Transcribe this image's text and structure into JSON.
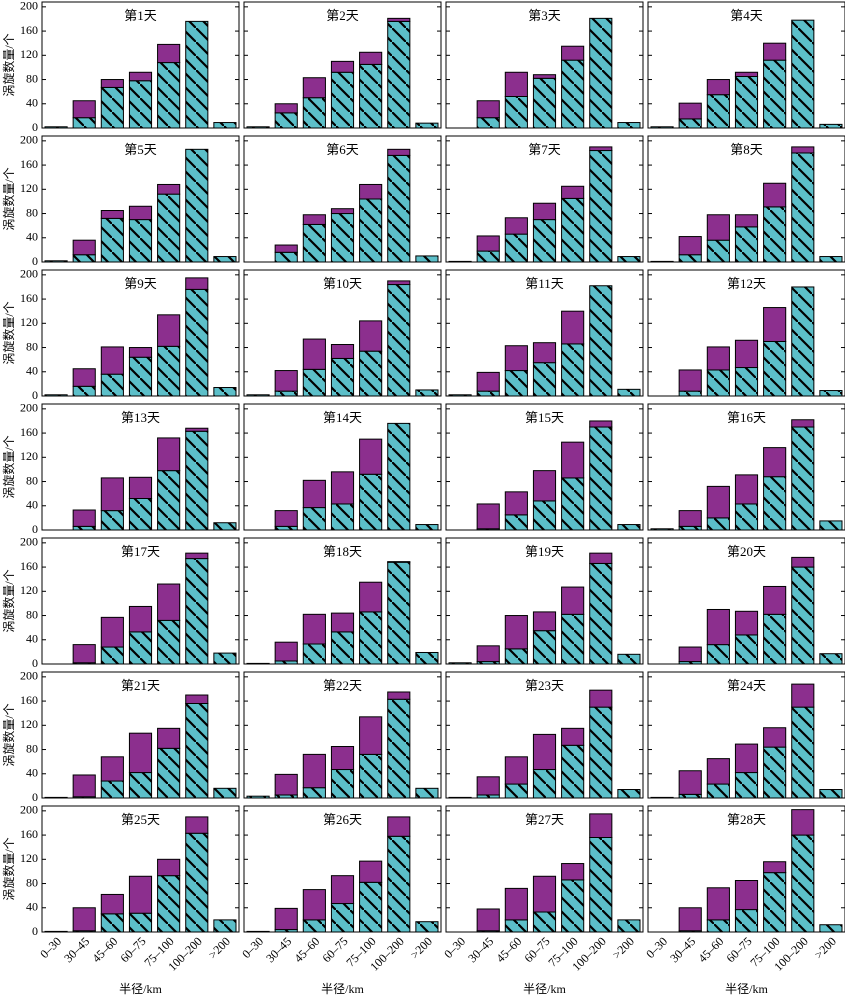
{
  "chart_data": [
    {
      "type": "bar",
      "stacked": true,
      "title": "第1天",
      "ylabel": "涡旋数量/个",
      "ylim": [
        0,
        208
      ],
      "yticks": [
        0,
        40,
        80,
        120,
        160,
        200
      ],
      "series": [
        {
          "color": "#5cbfc9",
          "hatch": true,
          "values": [
            2,
            17,
            67,
            78,
            108,
            176,
            9
          ]
        },
        {
          "color": "#8c2f8e",
          "values": [
            0,
            28,
            13,
            14,
            30,
            0,
            0
          ]
        }
      ]
    },
    {
      "type": "bar",
      "stacked": true,
      "title": "第2天",
      "ylim": [
        0,
        208
      ],
      "yticks": [
        0,
        40,
        80,
        120,
        160,
        200
      ],
      "series": [
        {
          "color": "#5cbfc9",
          "hatch": true,
          "values": [
            2,
            25,
            50,
            92,
            105,
            176,
            8
          ]
        },
        {
          "color": "#8c2f8e",
          "values": [
            0,
            15,
            33,
            18,
            20,
            5,
            0
          ]
        }
      ]
    },
    {
      "type": "bar",
      "stacked": true,
      "title": "第3天",
      "ylim": [
        0,
        208
      ],
      "yticks": [
        0,
        40,
        80,
        120,
        160,
        200
      ],
      "series": [
        {
          "color": "#5cbfc9",
          "hatch": true,
          "values": [
            0,
            17,
            52,
            82,
            112,
            181,
            9
          ]
        },
        {
          "color": "#8c2f8e",
          "values": [
            0,
            28,
            40,
            6,
            23,
            0,
            0
          ]
        }
      ]
    },
    {
      "type": "bar",
      "stacked": true,
      "title": "第4天",
      "ylim": [
        0,
        208
      ],
      "yticks": [
        0,
        40,
        80,
        120,
        160,
        200
      ],
      "series": [
        {
          "color": "#5cbfc9",
          "hatch": true,
          "values": [
            2,
            15,
            55,
            85,
            112,
            178,
            6
          ]
        },
        {
          "color": "#8c2f8e",
          "values": [
            0,
            26,
            25,
            7,
            28,
            0,
            0
          ]
        }
      ]
    },
    {
      "type": "bar",
      "stacked": true,
      "title": "第5天",
      "ylabel": "涡旋数量/个",
      "ylim": [
        0,
        208
      ],
      "yticks": [
        0,
        40,
        80,
        120,
        160,
        200
      ],
      "series": [
        {
          "color": "#5cbfc9",
          "hatch": true,
          "values": [
            2,
            12,
            72,
            70,
            112,
            186,
            9
          ]
        },
        {
          "color": "#8c2f8e",
          "values": [
            0,
            24,
            13,
            22,
            16,
            0,
            0
          ]
        }
      ]
    },
    {
      "type": "bar",
      "stacked": true,
      "title": "第6天",
      "ylim": [
        0,
        208
      ],
      "yticks": [
        0,
        40,
        80,
        120,
        160,
        200
      ],
      "series": [
        {
          "color": "#5cbfc9",
          "hatch": true,
          "values": [
            0,
            16,
            62,
            80,
            104,
            176,
            10
          ]
        },
        {
          "color": "#8c2f8e",
          "values": [
            0,
            12,
            16,
            8,
            24,
            10,
            0
          ]
        }
      ]
    },
    {
      "type": "bar",
      "stacked": true,
      "title": "第7天",
      "ylim": [
        0,
        208
      ],
      "yticks": [
        0,
        40,
        80,
        120,
        160,
        200
      ],
      "series": [
        {
          "color": "#5cbfc9",
          "hatch": true,
          "values": [
            1,
            18,
            46,
            70,
            105,
            184,
            9
          ]
        },
        {
          "color": "#8c2f8e",
          "values": [
            0,
            25,
            27,
            27,
            20,
            6,
            0
          ]
        }
      ]
    },
    {
      "type": "bar",
      "stacked": true,
      "title": "第8天",
      "ylim": [
        0,
        208
      ],
      "yticks": [
        0,
        40,
        80,
        120,
        160,
        200
      ],
      "series": [
        {
          "color": "#5cbfc9",
          "hatch": true,
          "values": [
            1,
            12,
            36,
            58,
            91,
            180,
            9
          ]
        },
        {
          "color": "#8c2f8e",
          "values": [
            0,
            30,
            42,
            20,
            39,
            10,
            0
          ]
        }
      ]
    },
    {
      "type": "bar",
      "stacked": true,
      "title": "第9天",
      "ylabel": "涡旋数量/个",
      "ylim": [
        0,
        208
      ],
      "yticks": [
        0,
        40,
        80,
        120,
        160,
        200
      ],
      "series": [
        {
          "color": "#5cbfc9",
          "hatch": true,
          "values": [
            2,
            16,
            36,
            64,
            82,
            176,
            14
          ]
        },
        {
          "color": "#8c2f8e",
          "values": [
            0,
            29,
            45,
            16,
            52,
            19,
            0
          ]
        }
      ]
    },
    {
      "type": "bar",
      "stacked": true,
      "title": "第10天",
      "ylim": [
        0,
        208
      ],
      "yticks": [
        0,
        40,
        80,
        120,
        160,
        200
      ],
      "series": [
        {
          "color": "#5cbfc9",
          "hatch": true,
          "values": [
            2,
            8,
            44,
            62,
            74,
            184,
            10
          ]
        },
        {
          "color": "#8c2f8e",
          "values": [
            0,
            34,
            50,
            23,
            50,
            6,
            0
          ]
        }
      ]
    },
    {
      "type": "bar",
      "stacked": true,
      "title": "第11天",
      "ylim": [
        0,
        208
      ],
      "yticks": [
        0,
        40,
        80,
        120,
        160,
        200
      ],
      "series": [
        {
          "color": "#5cbfc9",
          "hatch": true,
          "values": [
            2,
            8,
            42,
            55,
            86,
            182,
            11
          ]
        },
        {
          "color": "#8c2f8e",
          "values": [
            0,
            31,
            41,
            33,
            54,
            0,
            0
          ]
        }
      ]
    },
    {
      "type": "bar",
      "stacked": true,
      "title": "第12天",
      "ylim": [
        0,
        208
      ],
      "yticks": [
        0,
        40,
        80,
        120,
        160,
        200
      ],
      "series": [
        {
          "color": "#5cbfc9",
          "hatch": true,
          "values": [
            0,
            8,
            43,
            47,
            90,
            180,
            9
          ]
        },
        {
          "color": "#8c2f8e",
          "values": [
            0,
            35,
            38,
            45,
            56,
            0,
            0
          ]
        }
      ]
    },
    {
      "type": "bar",
      "stacked": true,
      "title": "第13天",
      "ylabel": "涡旋数量/个",
      "ylim": [
        0,
        208
      ],
      "yticks": [
        0,
        40,
        80,
        120,
        160,
        200
      ],
      "series": [
        {
          "color": "#5cbfc9",
          "hatch": true,
          "values": [
            0,
            6,
            32,
            52,
            98,
            163,
            12
          ]
        },
        {
          "color": "#8c2f8e",
          "values": [
            0,
            27,
            54,
            35,
            54,
            5,
            0
          ]
        }
      ]
    },
    {
      "type": "bar",
      "stacked": true,
      "title": "第14天",
      "ylim": [
        0,
        208
      ],
      "yticks": [
        0,
        40,
        80,
        120,
        160,
        200
      ],
      "series": [
        {
          "color": "#5cbfc9",
          "hatch": true,
          "values": [
            0,
            6,
            37,
            43,
            92,
            176,
            9
          ]
        },
        {
          "color": "#8c2f8e",
          "values": [
            0,
            26,
            45,
            53,
            58,
            0,
            0
          ]
        }
      ]
    },
    {
      "type": "bar",
      "stacked": true,
      "title": "第15天",
      "ylim": [
        0,
        208
      ],
      "yticks": [
        0,
        40,
        80,
        120,
        160,
        200
      ],
      "series": [
        {
          "color": "#5cbfc9",
          "hatch": true,
          "values": [
            0,
            2,
            25,
            48,
            86,
            170,
            9
          ]
        },
        {
          "color": "#8c2f8e",
          "values": [
            0,
            41,
            38,
            50,
            59,
            10,
            0
          ]
        }
      ]
    },
    {
      "type": "bar",
      "stacked": true,
      "title": "第16天",
      "ylim": [
        0,
        208
      ],
      "yticks": [
        0,
        40,
        80,
        120,
        160,
        200
      ],
      "series": [
        {
          "color": "#5cbfc9",
          "hatch": true,
          "values": [
            2,
            6,
            20,
            43,
            88,
            170,
            15
          ]
        },
        {
          "color": "#8c2f8e",
          "values": [
            0,
            26,
            52,
            48,
            48,
            12,
            0
          ]
        }
      ]
    },
    {
      "type": "bar",
      "stacked": true,
      "title": "第17天",
      "ylabel": "涡旋数量/个",
      "ylim": [
        0,
        208
      ],
      "yticks": [
        0,
        40,
        80,
        120,
        160,
        200
      ],
      "series": [
        {
          "color": "#5cbfc9",
          "hatch": true,
          "values": [
            0,
            2,
            28,
            53,
            72,
            174,
            18
          ]
        },
        {
          "color": "#8c2f8e",
          "values": [
            0,
            30,
            49,
            42,
            60,
            9,
            0
          ]
        }
      ]
    },
    {
      "type": "bar",
      "stacked": true,
      "title": "第18天",
      "ylim": [
        0,
        208
      ],
      "yticks": [
        0,
        40,
        80,
        120,
        160,
        200
      ],
      "series": [
        {
          "color": "#5cbfc9",
          "hatch": true,
          "values": [
            1,
            5,
            33,
            53,
            86,
            168,
            19
          ]
        },
        {
          "color": "#8c2f8e",
          "values": [
            0,
            31,
            49,
            31,
            49,
            1,
            0
          ]
        }
      ]
    },
    {
      "type": "bar",
      "stacked": true,
      "title": "第19天",
      "ylim": [
        0,
        208
      ],
      "yticks": [
        0,
        40,
        80,
        120,
        160,
        200
      ],
      "series": [
        {
          "color": "#5cbfc9",
          "hatch": true,
          "values": [
            2,
            4,
            25,
            55,
            82,
            166,
            16
          ]
        },
        {
          "color": "#8c2f8e",
          "values": [
            0,
            26,
            55,
            31,
            45,
            17,
            0
          ]
        }
      ]
    },
    {
      "type": "bar",
      "stacked": true,
      "title": "第20天",
      "ylim": [
        0,
        208
      ],
      "yticks": [
        0,
        40,
        80,
        120,
        160,
        200
      ],
      "series": [
        {
          "color": "#5cbfc9",
          "hatch": true,
          "values": [
            0,
            4,
            32,
            48,
            82,
            160,
            17
          ]
        },
        {
          "color": "#8c2f8e",
          "values": [
            0,
            24,
            58,
            39,
            46,
            16,
            0
          ]
        }
      ]
    },
    {
      "type": "bar",
      "stacked": true,
      "title": "第21天",
      "ylabel": "涡旋数量/个",
      "ylim": [
        0,
        208
      ],
      "yticks": [
        0,
        40,
        80,
        120,
        160,
        200
      ],
      "series": [
        {
          "color": "#5cbfc9",
          "hatch": true,
          "values": [
            1,
            2,
            28,
            42,
            82,
            156,
            16
          ]
        },
        {
          "color": "#8c2f8e",
          "values": [
            0,
            36,
            40,
            65,
            33,
            14,
            0
          ]
        }
      ]
    },
    {
      "type": "bar",
      "stacked": true,
      "title": "第22天",
      "ylim": [
        0,
        208
      ],
      "yticks": [
        0,
        40,
        80,
        120,
        160,
        200
      ],
      "series": [
        {
          "color": "#5cbfc9",
          "hatch": true,
          "values": [
            3,
            5,
            17,
            47,
            72,
            163,
            16
          ]
        },
        {
          "color": "#8c2f8e",
          "values": [
            0,
            34,
            55,
            38,
            62,
            12,
            0
          ]
        }
      ]
    },
    {
      "type": "bar",
      "stacked": true,
      "title": "第23天",
      "ylim": [
        0,
        208
      ],
      "yticks": [
        0,
        40,
        80,
        120,
        160,
        200
      ],
      "series": [
        {
          "color": "#5cbfc9",
          "hatch": true,
          "values": [
            1,
            5,
            23,
            47,
            87,
            150,
            14
          ]
        },
        {
          "color": "#8c2f8e",
          "values": [
            0,
            30,
            45,
            58,
            28,
            28,
            0
          ]
        }
      ]
    },
    {
      "type": "bar",
      "stacked": true,
      "title": "第24天",
      "ylim": [
        0,
        208
      ],
      "yticks": [
        0,
        40,
        80,
        120,
        160,
        200
      ],
      "series": [
        {
          "color": "#5cbfc9",
          "hatch": true,
          "values": [
            1,
            6,
            23,
            42,
            84,
            150,
            14
          ]
        },
        {
          "color": "#8c2f8e",
          "values": [
            0,
            39,
            42,
            47,
            32,
            38,
            0
          ]
        }
      ]
    },
    {
      "type": "bar",
      "stacked": true,
      "title": "第25天",
      "ylabel": "涡旋数量/个",
      "xlabel": "半径/km",
      "categories": [
        "0–30",
        "30–45",
        "45–60",
        "60–75",
        "75–100",
        "100–200",
        ">200"
      ],
      "ylim": [
        0,
        208
      ],
      "yticks": [
        0,
        40,
        80,
        120,
        160,
        200
      ],
      "series": [
        {
          "color": "#5cbfc9",
          "hatch": true,
          "values": [
            1,
            2,
            30,
            31,
            93,
            163,
            20
          ]
        },
        {
          "color": "#8c2f8e",
          "values": [
            0,
            38,
            32,
            61,
            27,
            27,
            0
          ]
        }
      ]
    },
    {
      "type": "bar",
      "stacked": true,
      "title": "第26天",
      "xlabel": "半径/km",
      "categories": [
        "0–30",
        "30–45",
        "45–60",
        "60–75",
        "75–100",
        "100–200",
        ">200"
      ],
      "ylim": [
        0,
        208
      ],
      "yticks": [
        0,
        40,
        80,
        120,
        160,
        200
      ],
      "series": [
        {
          "color": "#5cbfc9",
          "hatch": true,
          "values": [
            1,
            4,
            20,
            47,
            82,
            158,
            17
          ]
        },
        {
          "color": "#8c2f8e",
          "values": [
            0,
            35,
            50,
            46,
            35,
            32,
            0
          ]
        }
      ]
    },
    {
      "type": "bar",
      "stacked": true,
      "title": "第27天",
      "xlabel": "半径/km",
      "categories": [
        "0–30",
        "30–45",
        "45–60",
        "60–75",
        "75–100",
        "100–200",
        ">200"
      ],
      "ylim": [
        0,
        208
      ],
      "yticks": [
        0,
        40,
        80,
        120,
        160,
        200
      ],
      "series": [
        {
          "color": "#5cbfc9",
          "hatch": true,
          "values": [
            0,
            2,
            20,
            33,
            86,
            156,
            20
          ]
        },
        {
          "color": "#8c2f8e",
          "values": [
            0,
            36,
            52,
            59,
            27,
            39,
            0
          ]
        }
      ]
    },
    {
      "type": "bar",
      "stacked": true,
      "title": "第28天",
      "xlabel": "半径/km",
      "categories": [
        "0–30",
        "30–45",
        "45–60",
        "60–75",
        "75–100",
        "100–200",
        ">200"
      ],
      "ylim": [
        0,
        208
      ],
      "yticks": [
        0,
        40,
        80,
        120,
        160,
        200
      ],
      "series": [
        {
          "color": "#5cbfc9",
          "hatch": true,
          "values": [
            0,
            2,
            20,
            37,
            98,
            160,
            12
          ]
        },
        {
          "color": "#8c2f8e",
          "values": [
            0,
            38,
            53,
            48,
            18,
            42,
            0
          ]
        }
      ]
    }
  ]
}
